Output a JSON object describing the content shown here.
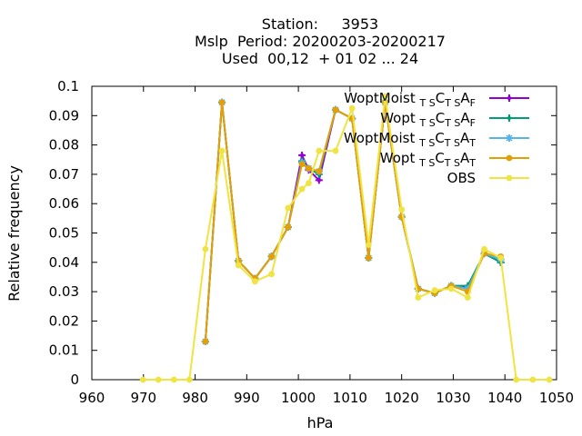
{
  "chart_data": {
    "type": "line",
    "title_lines": [
      "Station:     3953",
      "Mslp  Period: 20200203-20200217",
      "Used  00,12  + 01 02 ... 24"
    ],
    "xlabel": "hPa",
    "ylabel": "Relative frequency",
    "xlim": [
      960,
      1050
    ],
    "ylim": [
      0,
      0.1
    ],
    "xticks": [
      "960",
      "970",
      "980",
      "990",
      "1000",
      "1010",
      "1020",
      "1030",
      "1040",
      "1050"
    ],
    "yticks": [
      "0",
      "0.01",
      "0.02",
      "0.03",
      "0.04",
      "0.05",
      "0.06",
      "0.07",
      "0.08",
      "0.09",
      "0.1"
    ],
    "grid": false,
    "legend_position": "top-right",
    "series": [
      {
        "name": "WoptMoist_TSC_TSA_F",
        "legend": {
          "base": "WoptMoist ",
          "s1": "T S",
          "c": "C",
          "s2": "T S",
          "a": "A",
          "s3": "F"
        },
        "color": "#9400d3",
        "marker": "plus",
        "x": [
          982,
          985.2,
          988.4,
          991.6,
          994.8,
          998,
          1000.7,
          1002,
          1004,
          1007.2,
          1010.4,
          1013.6,
          1016.8,
          1020,
          1023.2,
          1026.4,
          1029.6,
          1032.8,
          1036,
          1039.2
        ],
        "y": [
          0.013,
          0.0945,
          0.0405,
          0.0345,
          0.042,
          0.052,
          0.0765,
          0.0715,
          0.068,
          0.092,
          0.089,
          0.0415,
          0.0945,
          0.0555,
          0.031,
          0.0295,
          0.032,
          0.0315,
          0.043,
          0.04
        ]
      },
      {
        "name": "Wopt_TSC_TSA_F",
        "legend": {
          "base": "Wopt ",
          "s1": "T S",
          "c": "C",
          "s2": "T S",
          "a": "A",
          "s3": "F"
        },
        "color": "#009e73",
        "marker": "plus",
        "x": [
          982,
          985.2,
          988.4,
          991.6,
          994.8,
          998,
          1000.7,
          1002,
          1004,
          1007.2,
          1010.4,
          1013.6,
          1016.8,
          1020,
          1023.2,
          1026.4,
          1029.6,
          1032.8,
          1036,
          1039.2
        ],
        "y": [
          0.013,
          0.0945,
          0.0405,
          0.0345,
          0.042,
          0.052,
          0.0745,
          0.072,
          0.07,
          0.092,
          0.089,
          0.0415,
          0.0945,
          0.0555,
          0.031,
          0.0295,
          0.032,
          0.032,
          0.043,
          0.04
        ]
      },
      {
        "name": "WoptMoist_TSC_TSA_T",
        "legend": {
          "base": "WoptMoist ",
          "s1": "T S",
          "c": "C",
          "s2": "T S",
          "a": "A",
          "s3": "T"
        },
        "color": "#56b4e9",
        "marker": "star",
        "x": [
          982,
          985.2,
          988.4,
          991.6,
          994.8,
          998,
          1000.7,
          1002,
          1004,
          1007.2,
          1010.4,
          1013.6,
          1016.8,
          1020,
          1023.2,
          1026.4,
          1029.6,
          1032.8,
          1036,
          1039.2
        ],
        "y": [
          0.013,
          0.0945,
          0.0405,
          0.0345,
          0.042,
          0.052,
          0.074,
          0.072,
          0.071,
          0.092,
          0.089,
          0.0415,
          0.0945,
          0.0555,
          0.031,
          0.0295,
          0.032,
          0.031,
          0.043,
          0.041
        ]
      },
      {
        "name": "Wopt_TSC_TSA_T",
        "legend": {
          "base": "Wopt ",
          "s1": "T S",
          "c": "C",
          "s2": "T S",
          "a": "A",
          "s3": "T"
        },
        "color": "#e69f00",
        "marker": "dot",
        "x": [
          982,
          985.2,
          988.4,
          991.6,
          994.8,
          998,
          1000.7,
          1002,
          1004,
          1007.2,
          1010.4,
          1013.6,
          1016.8,
          1020,
          1023.2,
          1026.4,
          1029.6,
          1032.8,
          1036,
          1039.2
        ],
        "y": [
          0.013,
          0.0945,
          0.0405,
          0.0345,
          0.042,
          0.052,
          0.0735,
          0.072,
          0.071,
          0.092,
          0.089,
          0.0415,
          0.0945,
          0.0555,
          0.031,
          0.0295,
          0.032,
          0.03,
          0.043,
          0.042
        ]
      },
      {
        "name": "OBS",
        "legend": {
          "base": "OBS"
        },
        "color": "#f0e442",
        "marker": "dot",
        "x": [
          969.9,
          972.9,
          975.9,
          978.9,
          982,
          985.2,
          988.4,
          991.6,
          994.8,
          998,
          1000.7,
          1002,
          1004,
          1007.2,
          1010.4,
          1013.6,
          1016.8,
          1020,
          1023.2,
          1026.4,
          1029.6,
          1032.8,
          1036,
          1039.2,
          1042.2,
          1045.4,
          1048.6
        ],
        "y": [
          0,
          0,
          0,
          0,
          0.0445,
          0.078,
          0.039,
          0.0335,
          0.036,
          0.0585,
          0.065,
          0.067,
          0.078,
          0.078,
          0.0925,
          0.046,
          0.0965,
          0.058,
          0.028,
          0.0305,
          0.031,
          0.028,
          0.0445,
          0.0415,
          0,
          0,
          0
        ]
      }
    ]
  }
}
